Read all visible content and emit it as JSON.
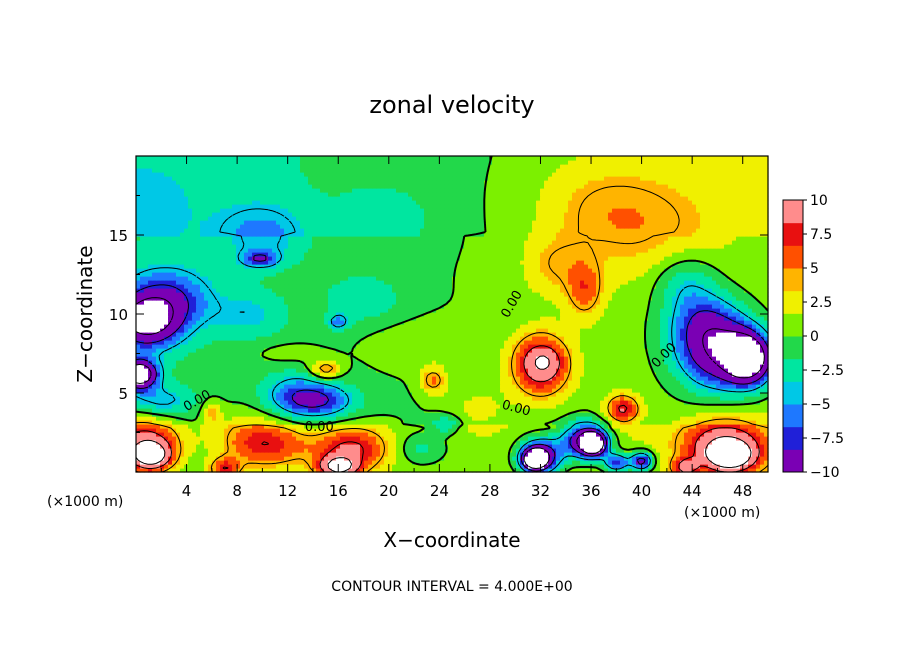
{
  "chart_data": {
    "type": "heatmap",
    "title": "zonal velocity",
    "xlabel": "X−coordinate",
    "ylabel": "Z−coordinate",
    "x_unit_left": "(×1000 m)",
    "x_unit_right": "(×1000 m)",
    "footer": "CONTOUR INTERVAL = 4.000E+00",
    "xlim": [
      0,
      50
    ],
    "ylim": [
      0,
      20
    ],
    "x_ticks": [
      "4",
      "8",
      "12",
      "16",
      "20",
      "24",
      "28",
      "32",
      "36",
      "40",
      "44",
      "48"
    ],
    "y_ticks": [
      "5",
      "10",
      "15"
    ],
    "colorbar": {
      "ticks": [
        "10",
        "7.5",
        "5",
        "2.5",
        "0",
        "−2.5",
        "−5",
        "−7.5",
        "−10"
      ],
      "range": [
        -10,
        10
      ],
      "colors": [
        "#7a00b4",
        "#2020d8",
        "#1e78ff",
        "#00c8e6",
        "#00e6a0",
        "#22d84a",
        "#7cf000",
        "#f0f000",
        "#ffb400",
        "#ff5000",
        "#e81010",
        "#ff8c8c"
      ]
    },
    "contour_labels": [
      "0.00",
      "0.00",
      "0.00",
      "0.00",
      "0.00"
    ],
    "features": [
      {
        "x": 0.5,
        "z": 2.0,
        "u": 9,
        "sx": 3.0,
        "sz": 1.6
      },
      {
        "x": 1.2,
        "z": 1.0,
        "u": 12,
        "sx": 1.6,
        "sz": 0.9
      },
      {
        "x": 10.5,
        "z": 1.8,
        "u": 7,
        "sx": 3.0,
        "sz": 1.5
      },
      {
        "x": 17.0,
        "z": 1.5,
        "u": 8,
        "sx": 3.0,
        "sz": 1.4
      },
      {
        "x": 16.0,
        "z": 0.3,
        "u": 11,
        "sx": 1.6,
        "sz": 0.7
      },
      {
        "x": 7.0,
        "z": 0.2,
        "u": 7,
        "sx": 1.2,
        "sz": 0.7
      },
      {
        "x": 46.5,
        "z": 1.8,
        "u": 9,
        "sx": 3.2,
        "sz": 1.6
      },
      {
        "x": 47.0,
        "z": 1.0,
        "u": 12,
        "sx": 1.8,
        "sz": 0.9
      },
      {
        "x": 43.5,
        "z": 0.3,
        "u": 7,
        "sx": 1.0,
        "sz": 0.6
      },
      {
        "x": 32.0,
        "z": 6.8,
        "u": 10,
        "sx": 2.3,
        "sz": 2.0
      },
      {
        "x": 32.3,
        "z": 7.0,
        "u": 3,
        "sx": 1.2,
        "sz": 0.8
      },
      {
        "x": 35.5,
        "z": 11.5,
        "u": 5,
        "sx": 1.4,
        "sz": 1.8
      },
      {
        "x": 38.5,
        "z": 4.0,
        "u": 8,
        "sx": 1.3,
        "sz": 0.9
      },
      {
        "x": 23.5,
        "z": 5.8,
        "u": 5,
        "sx": 1.1,
        "sz": 0.9
      },
      {
        "x": 15.0,
        "z": 6.5,
        "u": 6,
        "sx": 1.2,
        "sz": 0.6
      },
      {
        "x": 6.0,
        "z": 3.8,
        "u": 4,
        "sx": 0.8,
        "sz": 0.8
      },
      {
        "x": 8.0,
        "z": 2.5,
        "u": 2,
        "sx": 2.5,
        "sz": 2.0
      },
      {
        "x": 0.3,
        "z": 6.2,
        "u": -16,
        "sx": 1.4,
        "sz": 0.9
      },
      {
        "x": 0.8,
        "z": 9.5,
        "u": -12,
        "sx": 2.6,
        "sz": 1.6
      },
      {
        "x": 2.5,
        "z": 11.0,
        "u": -7,
        "sx": 3.5,
        "sz": 2.0
      },
      {
        "x": 2.0,
        "z": 4.5,
        "u": -4,
        "sx": 2.5,
        "sz": 0.9
      },
      {
        "x": 48.5,
        "z": 7.2,
        "u": -16,
        "sx": 1.8,
        "sz": 1.6
      },
      {
        "x": 46.0,
        "z": 7.5,
        "u": -11,
        "sx": 3.2,
        "sz": 2.4
      },
      {
        "x": 45.0,
        "z": 9.5,
        "u": -6,
        "sx": 3.0,
        "sz": 2.0
      },
      {
        "x": 43.5,
        "z": 12.0,
        "u": -4,
        "sx": 2.5,
        "sz": 1.8
      },
      {
        "x": 35.5,
        "z": 2.0,
        "u": -13,
        "sx": 1.8,
        "sz": 1.1
      },
      {
        "x": 32.0,
        "z": 1.0,
        "u": -13,
        "sx": 1.6,
        "sz": 1.1
      },
      {
        "x": 36.2,
        "z": 1.8,
        "u": -16,
        "sx": 0.9,
        "sz": 0.7
      },
      {
        "x": 31.5,
        "z": 0.8,
        "u": -15,
        "sx": 0.9,
        "sz": 0.6
      },
      {
        "x": 38.0,
        "z": 0.6,
        "u": -9,
        "sx": 1.0,
        "sz": 0.6
      },
      {
        "x": 40.0,
        "z": 0.7,
        "u": -11,
        "sx": 0.9,
        "sz": 0.6
      },
      {
        "x": 22.5,
        "z": 1.5,
        "u": -3,
        "sx": 2.0,
        "sz": 1.0
      },
      {
        "x": 14.5,
        "z": 4.5,
        "u": -7,
        "sx": 2.8,
        "sz": 1.1
      },
      {
        "x": 12.5,
        "z": 5.0,
        "u": -4,
        "sx": 2.5,
        "sz": 1.4
      },
      {
        "x": 9.0,
        "z": 10.0,
        "u": -3,
        "sx": 3.0,
        "sz": 1.5
      },
      {
        "x": 18.0,
        "z": 11.0,
        "u": -3,
        "sx": 3.0,
        "sz": 1.5
      },
      {
        "x": 10.0,
        "z": 15.0,
        "u": -4,
        "sx": 3.5,
        "sz": 2.0
      },
      {
        "x": 20.0,
        "z": 16.0,
        "u": -2,
        "sx": 3.5,
        "sz": 2.0
      },
      {
        "x": 2.0,
        "z": 17.0,
        "u": -1,
        "sx": 3.5,
        "sz": 2.5
      },
      {
        "x": 9.8,
        "z": 13.5,
        "u": -6,
        "sx": 1.4,
        "sz": 0.5
      },
      {
        "x": 16.0,
        "z": 9.5,
        "u": -5,
        "sx": 0.8,
        "sz": 0.5
      },
      {
        "x": 24.5,
        "z": 3.0,
        "u": -4,
        "sx": 1.2,
        "sz": 0.6
      },
      {
        "x": 40.0,
        "z": 15.5,
        "u": 3,
        "sx": 6.0,
        "sz": 3.5
      },
      {
        "x": 36.0,
        "z": 17.0,
        "u": 2,
        "sx": 5.0,
        "sz": 3.0
      },
      {
        "x": 33.0,
        "z": 13.0,
        "u": 3,
        "sx": 2.5,
        "sz": 2.0
      },
      {
        "x": 22.0,
        "z": 8.0,
        "u": 1.5,
        "sx": 4.0,
        "sz": 1.5
      },
      {
        "x": 27.0,
        "z": 4.0,
        "u": 2,
        "sx": 2.5,
        "sz": 1.5
      },
      {
        "x": 12.0,
        "z": 7.5,
        "u": 1.5,
        "sx": 3.0,
        "sz": 0.8
      }
    ]
  }
}
